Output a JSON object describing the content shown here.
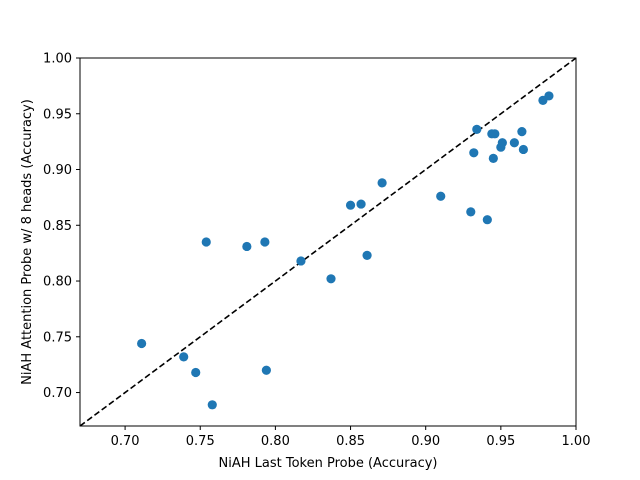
{
  "chart_data": {
    "type": "scatter",
    "title": "",
    "xlabel": "NiAH Last Token Probe (Accuracy)",
    "ylabel": "NiAH Attention Probe w/ 8 heads (Accuracy)",
    "xlim": [
      0.67,
      1.0
    ],
    "ylim": [
      0.67,
      1.0
    ],
    "xticks": [
      "0.70",
      "0.75",
      "0.80",
      "0.85",
      "0.90",
      "0.95",
      "1.00"
    ],
    "yticks": [
      "0.70",
      "0.75",
      "0.80",
      "0.85",
      "0.90",
      "0.95",
      "1.00"
    ],
    "grid": false,
    "legend": "none",
    "marker_color": "#1f77b4",
    "reference_line": {
      "style": "dashed",
      "color": "#000000",
      "from": [
        0.67,
        0.67
      ],
      "to": [
        1.0,
        1.0
      ]
    },
    "points": [
      {
        "x": 0.711,
        "y": 0.744
      },
      {
        "x": 0.739,
        "y": 0.732
      },
      {
        "x": 0.747,
        "y": 0.718
      },
      {
        "x": 0.754,
        "y": 0.835
      },
      {
        "x": 0.758,
        "y": 0.689
      },
      {
        "x": 0.781,
        "y": 0.831
      },
      {
        "x": 0.793,
        "y": 0.835
      },
      {
        "x": 0.794,
        "y": 0.72
      },
      {
        "x": 0.817,
        "y": 0.818
      },
      {
        "x": 0.837,
        "y": 0.802
      },
      {
        "x": 0.85,
        "y": 0.868
      },
      {
        "x": 0.857,
        "y": 0.869
      },
      {
        "x": 0.861,
        "y": 0.823
      },
      {
        "x": 0.871,
        "y": 0.888
      },
      {
        "x": 0.91,
        "y": 0.876
      },
      {
        "x": 0.93,
        "y": 0.862
      },
      {
        "x": 0.932,
        "y": 0.915
      },
      {
        "x": 0.934,
        "y": 0.936
      },
      {
        "x": 0.941,
        "y": 0.855
      },
      {
        "x": 0.944,
        "y": 0.932
      },
      {
        "x": 0.946,
        "y": 0.932
      },
      {
        "x": 0.945,
        "y": 0.91
      },
      {
        "x": 0.95,
        "y": 0.92
      },
      {
        "x": 0.951,
        "y": 0.924
      },
      {
        "x": 0.959,
        "y": 0.924
      },
      {
        "x": 0.964,
        "y": 0.934
      },
      {
        "x": 0.965,
        "y": 0.918
      },
      {
        "x": 0.978,
        "y": 0.962
      },
      {
        "x": 0.982,
        "y": 0.966
      }
    ]
  }
}
